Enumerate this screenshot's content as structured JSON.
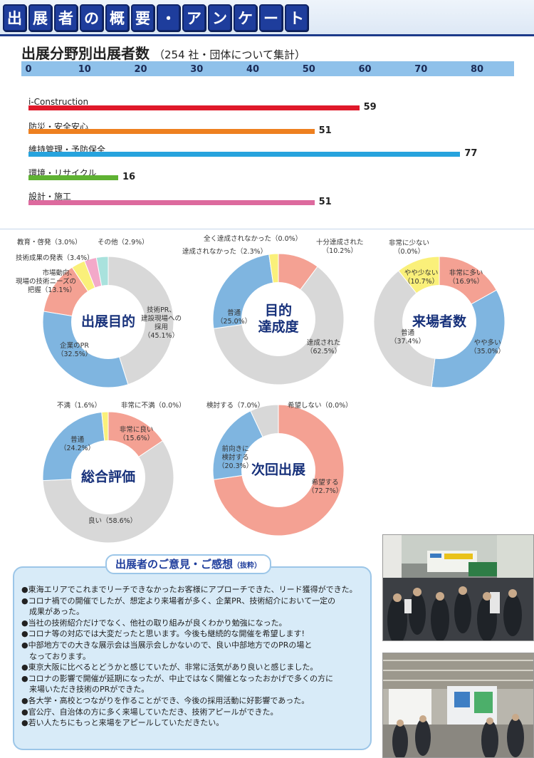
{
  "header": {
    "title_chars": [
      "出",
      "展",
      "者",
      "の",
      "概",
      "要",
      "・",
      "ア",
      "ン",
      "ケ",
      "ー",
      "ト"
    ]
  },
  "bar_section": {
    "title": "出展分野別出展者数",
    "note": "（254 社・団体について集計）"
  },
  "chart_data": [
    {
      "type": "bar",
      "orientation": "horizontal",
      "title": "出展分野別出展者数",
      "xlim": [
        0,
        80
      ],
      "ticks": [
        "0",
        "10",
        "20",
        "30",
        "40",
        "50",
        "60",
        "70",
        "80"
      ],
      "categories": [
        "i-Construction",
        "防災・安全安心",
        "維持管理・予防保全",
        "環境・リサイクル",
        "設計・施工"
      ],
      "values": [
        59,
        51,
        77,
        16,
        51
      ],
      "value_labels": [
        "59",
        "51",
        "77",
        "16",
        "51"
      ],
      "colors": [
        "#e0192a",
        "#ee8020",
        "#27a3dd",
        "#5fb233",
        "#dd6a9e"
      ]
    },
    {
      "type": "pie",
      "title": "出展目的",
      "slices": [
        {
          "label": "技術PR、建設現場への採用",
          "value": 45.1,
          "pct": "45.1%",
          "color": "#d8d8d8"
        },
        {
          "label": "企業のPR",
          "value": 32.5,
          "pct": "32.5%",
          "color": "#7fb5e0"
        },
        {
          "label": "市場動向、現場の技術ニーズの把握",
          "value": 13.1,
          "pct": "13.1%",
          "color": "#f4a193"
        },
        {
          "label": "技術成果の発表",
          "value": 3.4,
          "pct": "3.4%",
          "color": "#faf07a"
        },
        {
          "label": "教育・啓発",
          "value": 3.0,
          "pct": "3.0%",
          "color": "#f3a9c9"
        },
        {
          "label": "その他",
          "value": 2.9,
          "pct": "2.9%",
          "color": "#a9e2dd"
        }
      ]
    },
    {
      "type": "pie",
      "title": "目的達成度",
      "slices": [
        {
          "label": "十分達成された",
          "value": 10.2,
          "pct": "10.2%",
          "color": "#f4a193"
        },
        {
          "label": "達成された",
          "value": 62.5,
          "pct": "62.5%",
          "color": "#d8d8d8"
        },
        {
          "label": "普通",
          "value": 25.0,
          "pct": "25.0%",
          "color": "#7fb5e0"
        },
        {
          "label": "達成されなかった",
          "value": 2.3,
          "pct": "2.3%",
          "color": "#faf07a"
        },
        {
          "label": "全く達成されなかった",
          "value": 0.0,
          "pct": "0.0%",
          "color": "#f3a9c9"
        }
      ]
    },
    {
      "type": "pie",
      "title": "来場者数",
      "slices": [
        {
          "label": "非常に多い",
          "value": 16.9,
          "pct": "16.9%",
          "color": "#f4a193"
        },
        {
          "label": "やや多い",
          "value": 35.0,
          "pct": "35.0%",
          "color": "#7fb5e0"
        },
        {
          "label": "普通",
          "value": 37.4,
          "pct": "37.4%",
          "color": "#d8d8d8"
        },
        {
          "label": "やや少ない",
          "value": 10.7,
          "pct": "10.7%",
          "color": "#faf07a"
        },
        {
          "label": "非常に少ない",
          "value": 0.0,
          "pct": "0.0%",
          "color": "#f3a9c9"
        }
      ]
    },
    {
      "type": "pie",
      "title": "総合評価",
      "slices": [
        {
          "label": "非常に良い",
          "value": 15.6,
          "pct": "15.6%",
          "color": "#f4a193"
        },
        {
          "label": "良い",
          "value": 58.6,
          "pct": "58.6%",
          "color": "#d8d8d8"
        },
        {
          "label": "普通",
          "value": 24.2,
          "pct": "24.2%",
          "color": "#7fb5e0"
        },
        {
          "label": "不満",
          "value": 1.6,
          "pct": "1.6%",
          "color": "#faf07a"
        },
        {
          "label": "非常に不満",
          "value": 0.0,
          "pct": "0.0%",
          "color": "#f3a9c9"
        }
      ]
    },
    {
      "type": "pie",
      "title": "次回出展",
      "slices": [
        {
          "label": "希望する",
          "value": 72.7,
          "pct": "72.7%",
          "color": "#f4a193"
        },
        {
          "label": "前向きに検討する",
          "value": 20.3,
          "pct": "20.3%",
          "color": "#7fb5e0"
        },
        {
          "label": "検討する",
          "value": 7.0,
          "pct": "7.0%",
          "color": "#d8d8d8"
        },
        {
          "label": "希望しない",
          "value": 0.0,
          "pct": "0.0%",
          "color": "#f3a9c9"
        }
      ]
    }
  ],
  "donut_titles": {
    "d1": [
      "出展目的"
    ],
    "d2": [
      "目的",
      "達成度"
    ],
    "d3": [
      "来場者数"
    ],
    "d4": [
      "総合評価"
    ],
    "d5": [
      "次回出展"
    ]
  },
  "annotations": {
    "d1": [
      [
        "教育・啓発（3.0%）"
      ],
      [
        "技術成果の発表（3.4%）"
      ],
      [
        "市場動向、",
        "現場の技術ニーズの",
        "把握（13.1%）"
      ],
      [
        "その他（2.9%）"
      ],
      [
        "技術PR、",
        "建設現場への",
        "採用",
        "（45.1%）"
      ],
      [
        "企業のPR",
        "（32.5%）"
      ]
    ],
    "d2": [
      [
        "全く達成されなかった（0.0%）"
      ],
      [
        "達成されなかった（2.3%）"
      ],
      [
        "十分達成された",
        "（10.2%）"
      ],
      [
        "普通",
        "（25.0%）"
      ],
      [
        "達成された",
        "（62.5%）"
      ]
    ],
    "d3": [
      [
        "非常に少ない",
        "（0.0%）"
      ],
      [
        "やや少ない",
        "（10.7%）"
      ],
      [
        "非常に多い",
        "（16.9%）"
      ],
      [
        "普通",
        "（37.4%）"
      ],
      [
        "やや多い",
        "（35.0%）"
      ]
    ],
    "d4": [
      [
        "不満（1.6%）"
      ],
      [
        "非常に不満（0.0%）"
      ],
      [
        "非常に良い",
        "（15.6%）"
      ],
      [
        "普通",
        "（24.2%）"
      ],
      [
        "良い（58.6%）"
      ]
    ],
    "d5": [
      [
        "検討する（7.0%）"
      ],
      [
        "希望しない（0.0%）"
      ],
      [
        "前向きに",
        "検討する",
        "（20.3%）"
      ],
      [
        "希望する",
        "（72.7%）"
      ]
    ]
  },
  "comments": {
    "title": "出展者のご意見・ご感想",
    "title_note": "（抜粋）",
    "items": [
      [
        "●東海エリアでこれまでリーチできなかったお客様にアプローチできた、リード獲得ができた。"
      ],
      [
        "●コロナ禍での開催でしたが、想定より来場者が多く、企業PR、技術紹介において一定の",
        "　成果があった。"
      ],
      [
        "●当社の技術紹介だけでなく、他社の取り組みが良くわかり勉強になった。"
      ],
      [
        "●コロナ等の対応では大変だったと思います。今後も継続的な開催を希望します!"
      ],
      [
        "●中部地方での大きな展示会は当展示会しかないので、良い中部地方でのPRの場と",
        "　なっております。"
      ],
      [
        "●東京大阪に比べるとどうかと感じていたが、非常に活気があり良いと感じました。"
      ],
      [
        "●コロナの影響で開催が延期になったが、中止ではなく開催となったおかげで多くの方に",
        "　来場いただき技術のPRができた。"
      ],
      [
        "●各大学・高校とつながりを作ることができ、今後の採用活動に好影響であった。"
      ],
      [
        "●官公庁、自治体の方に多く来場していただき、技術アピールができた。"
      ],
      [
        "●若い人たちにもっと来場をアピールしていただきたい。"
      ]
    ]
  }
}
